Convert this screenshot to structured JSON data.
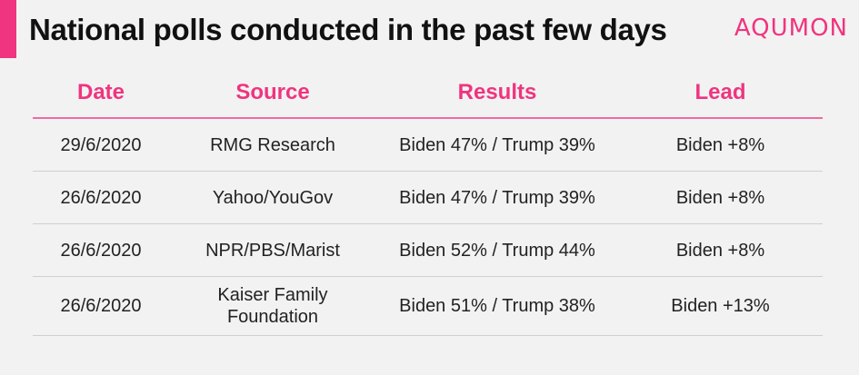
{
  "title": "National polls conducted in the past few days",
  "brand": {
    "logo_text": "AQUMON",
    "accent_color": "#f0347f"
  },
  "table": {
    "headers": [
      "Date",
      "Source",
      "Results",
      "Lead"
    ],
    "rows": [
      [
        "29/6/2020",
        "RMG Research",
        "Biden 47% / Trump 39%",
        "Biden +8%"
      ],
      [
        "26/6/2020",
        "Yahoo/YouGov",
        "Biden 47% / Trump 39%",
        "Biden +8%"
      ],
      [
        "26/6/2020",
        "NPR/PBS/Marist",
        "Biden 52% / Trump 44%",
        "Biden +8%"
      ],
      [
        "26/6/2020",
        "Kaiser Family Foundation",
        "Biden 51% / Trump 38%",
        "Biden +13%"
      ]
    ]
  }
}
